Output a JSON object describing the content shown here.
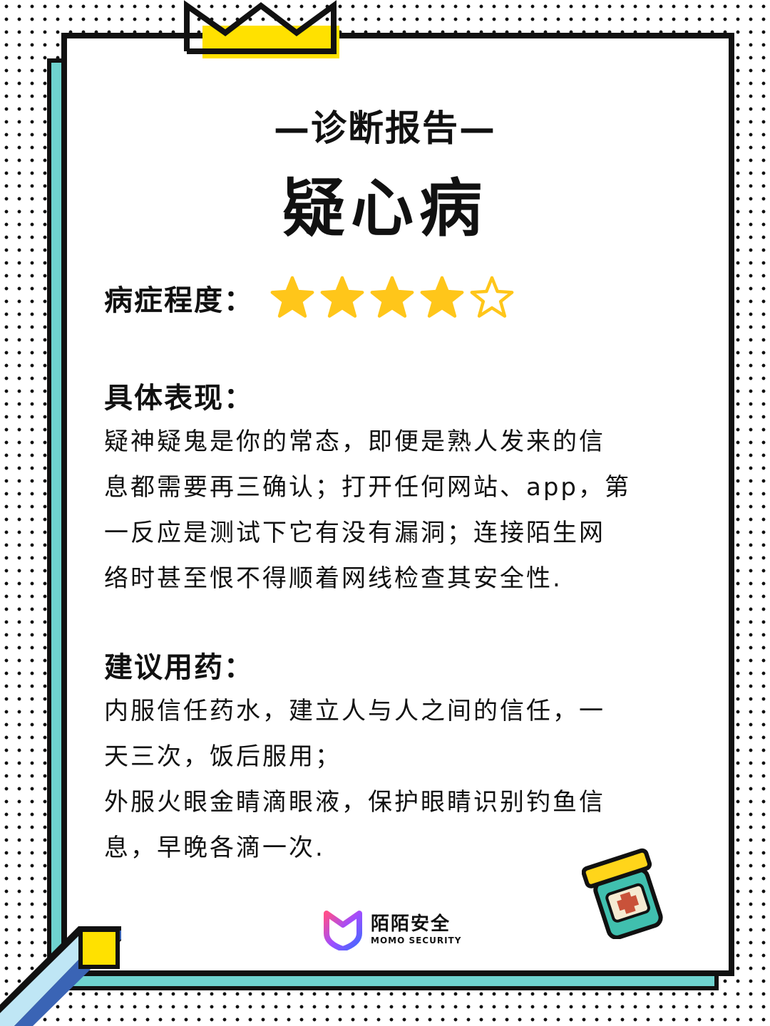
{
  "header": {
    "subtitle": "—诊断报告—",
    "title": "疑心病"
  },
  "severity": {
    "label": "病症程度：",
    "rating": 4,
    "max": 5,
    "filled_color": "#ffc61a",
    "empty_color": "#ffffff"
  },
  "symptoms": {
    "title": "具体表现：",
    "lines": [
      "疑神疑鬼是你的常态，即便是熟人发来的信",
      "息都需要再三确认；打开任何网站、app，第",
      "一反应是测试下它有没有漏洞；连接陌生网",
      "络时甚至恨不得顺着网线检查其安全性."
    ]
  },
  "medicine": {
    "title": "建议用药：",
    "lines": [
      "内服信任药水，建立人与人之间的信任，一",
      "天三次，饭后服用；",
      "外服火眼金睛滴眼液，保护眼睛识别钓鱼信",
      "息，早晚各滴一次."
    ]
  },
  "logo": {
    "name_cn": "陌陌安全",
    "name_en": "MOMO SECURITY"
  },
  "colors": {
    "accent_teal": "#6fd3cf",
    "accent_yellow": "#ffe100",
    "star_yellow": "#ffc61a",
    "ink": "#111111"
  },
  "icons": [
    "crown-icon",
    "star-icon",
    "medicine-jar-icon",
    "pencil-icon",
    "momo-shield-logo-icon"
  ]
}
